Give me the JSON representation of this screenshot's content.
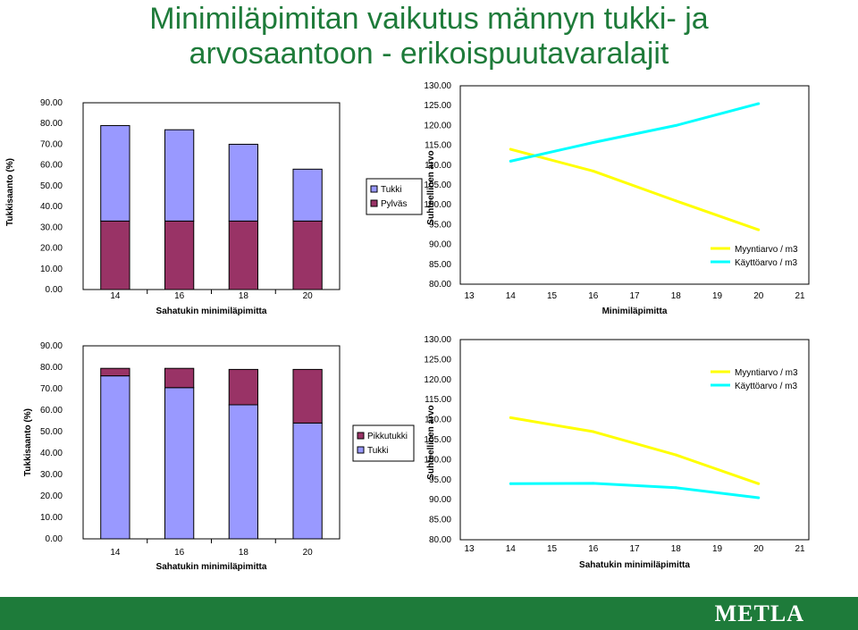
{
  "title_lines": [
    "Minimiläpimitan vaikutus männyn tukki- ja",
    "arvosaantoon - erikoispuutavaralajit"
  ],
  "logo_text": "METLA",
  "colors": {
    "title": "#1e7b3a",
    "band": "#1e7b3a",
    "bar_top": "#9999ff",
    "bar_bottom": "#993366",
    "line_yellow": "#ffff00",
    "line_cyan": "#00ffff"
  },
  "chart_data": [
    {
      "id": "c1",
      "type": "bar",
      "stacked": true,
      "categories": [
        "14",
        "16",
        "18",
        "20"
      ],
      "series": [
        {
          "name": "Pylväs",
          "values": [
            33,
            33,
            33,
            33
          ],
          "color": "#993366"
        },
        {
          "name": "Tukki",
          "values": [
            46,
            44,
            37,
            25
          ],
          "color": "#9999ff"
        }
      ],
      "legend_order": [
        "Tukki",
        "Pylväs"
      ],
      "xlabel": "Sahatukin minimiläpimitta",
      "ylabel": "Tukkisaanto (%)",
      "ylim": [
        0,
        90
      ],
      "ytick_labels": [
        "0.00",
        "10.00",
        "20.00",
        "30.00",
        "40.00",
        "50.00",
        "60.00",
        "70.00",
        "80.00",
        "90.00"
      ],
      "legend_position": "right"
    },
    {
      "id": "c2",
      "type": "line",
      "x": [
        13,
        14,
        15,
        16,
        17,
        18,
        19,
        20,
        21
      ],
      "xtick_labels": [
        "13",
        "14",
        "15",
        "16",
        "17",
        "18",
        "19",
        "20",
        "21"
      ],
      "series": [
        {
          "name": "Myyntiarvo / m3",
          "points": [
            [
              14,
              114
            ],
            [
              16,
              108.5
            ],
            [
              18,
              101
            ],
            [
              20,
              93.7
            ]
          ],
          "color": "#ffff00"
        },
        {
          "name": "Käyttöarvo / m3",
          "points": [
            [
              14,
              111
            ],
            [
              16,
              115.7
            ],
            [
              18,
              120
            ],
            [
              20,
              125.5
            ]
          ],
          "color": "#00ffff"
        }
      ],
      "xlabel": "Minimiläpimitta",
      "ylabel": "Suhteellinen arvo",
      "ylim": [
        80,
        130
      ],
      "ytick_labels": [
        "80.00",
        "85.00",
        "90.00",
        "95.00",
        "100.00",
        "105.00",
        "110.00",
        "115.00",
        "120.00",
        "125.00",
        "130.00"
      ],
      "legend_position": "bottom-right"
    },
    {
      "id": "c3",
      "type": "bar",
      "stacked": true,
      "categories": [
        "14",
        "16",
        "18",
        "20"
      ],
      "series": [
        {
          "name": "Tukki",
          "values": [
            76,
            70.5,
            62.5,
            54
          ],
          "color": "#9999ff"
        },
        {
          "name": "Pikkutukki",
          "values": [
            3.5,
            9,
            16.5,
            25
          ],
          "color": "#993366"
        }
      ],
      "legend_order": [
        "Pikkutukki",
        "Tukki"
      ],
      "xlabel": "Sahatukin minimiläpimitta",
      "ylabel": "Tukkisaanto (%)",
      "ylim": [
        0,
        90
      ],
      "ytick_labels": [
        "0.00",
        "10.00",
        "20.00",
        "30.00",
        "40.00",
        "50.00",
        "60.00",
        "70.00",
        "80.00",
        "90.00"
      ],
      "legend_position": "right"
    },
    {
      "id": "c4",
      "type": "line",
      "x": [
        13,
        14,
        15,
        16,
        17,
        18,
        19,
        20,
        21
      ],
      "xtick_labels": [
        "13",
        "14",
        "15",
        "16",
        "17",
        "18",
        "19",
        "20",
        "21"
      ],
      "series": [
        {
          "name": "Myyntiarvo / m3",
          "points": [
            [
              14,
              110.5
            ],
            [
              16,
              107
            ],
            [
              18,
              101.2
            ],
            [
              20,
              94
            ]
          ],
          "color": "#ffff00"
        },
        {
          "name": "Käyttöarvo / m3",
          "points": [
            [
              14,
              94
            ],
            [
              16,
              94.1
            ],
            [
              18,
              93
            ],
            [
              20,
              90.5
            ]
          ],
          "color": "#00ffff"
        }
      ],
      "xlabel": "Sahatukin minimiläpimitta",
      "ylabel": "Suhteellinen arvo",
      "ylim": [
        80,
        130
      ],
      "ytick_labels": [
        "80.00",
        "85.00",
        "90.00",
        "95.00",
        "100.00",
        "105.00",
        "110.00",
        "115.00",
        "120.00",
        "125.00",
        "130.00"
      ],
      "legend_position": "top-right"
    }
  ]
}
